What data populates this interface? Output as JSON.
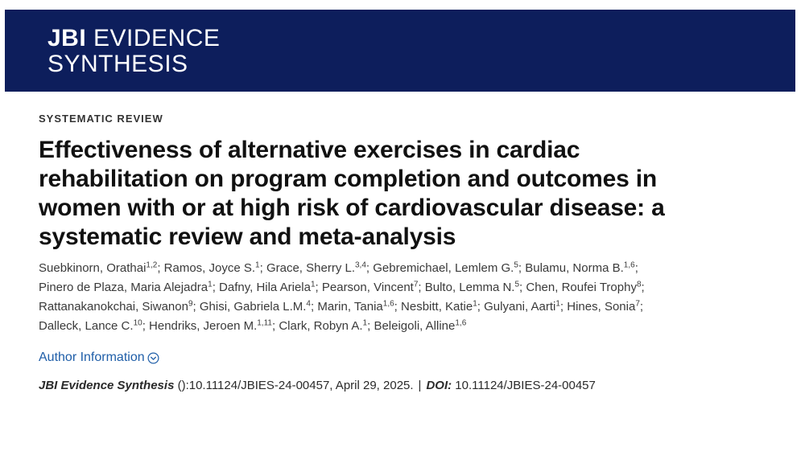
{
  "header": {
    "logo_bold": "JBI",
    "logo_line1_rest": " EVIDENCE",
    "logo_line2": "SYNTHESIS",
    "background": "#0d1e5c"
  },
  "article": {
    "category": "SYSTEMATIC REVIEW",
    "title_lines": [
      "Effectiveness of alternative exercises in cardiac",
      "rehabilitation on program completion and outcomes in",
      "women with or at high risk of cardiovascular disease: a",
      "systematic review and meta-analysis"
    ],
    "author_lines": [
      [
        {
          "name": "Suebkinorn, Orathai",
          "sup": "1,2"
        },
        {
          "name": "Ramos, Joyce S.",
          "sup": "1"
        },
        {
          "name": "Grace, Sherry L.",
          "sup": "3,4"
        },
        {
          "name": "Gebremichael, Lemlem G.",
          "sup": "5"
        },
        {
          "name": "Bulamu, Norma B.",
          "sup": "1,6"
        }
      ],
      [
        {
          "name": "Pinero de Plaza, Maria Alejadra",
          "sup": "1"
        },
        {
          "name": "Dafny, Hila Ariela",
          "sup": "1"
        },
        {
          "name": "Pearson, Vincent",
          "sup": "7"
        },
        {
          "name": "Bulto, Lemma N.",
          "sup": "5"
        },
        {
          "name": "Chen, Roufei Trophy",
          "sup": "8"
        }
      ],
      [
        {
          "name": "Rattanakanokchai, Siwanon",
          "sup": "9"
        },
        {
          "name": "Ghisi, Gabriela L.M.",
          "sup": "4"
        },
        {
          "name": "Marin, Tania",
          "sup": "1,6"
        },
        {
          "name": "Nesbitt, Katie",
          "sup": "1"
        },
        {
          "name": "Gulyani, Aarti",
          "sup": "1"
        },
        {
          "name": "Hines, Sonia",
          "sup": "7"
        }
      ],
      [
        {
          "name": "Dalleck, Lance C.",
          "sup": "10"
        },
        {
          "name": "Hendriks, Jeroen M.",
          "sup": "1,11"
        },
        {
          "name": "Clark, Robyn A.",
          "sup": "1"
        },
        {
          "name": "Beleigoli, Alline",
          "sup": "1,6"
        }
      ]
    ],
    "author_info_label": "Author Information",
    "author_info_icon": "chevron-down-circle-icon",
    "citation": {
      "journal": "JBI Evidence Synthesis",
      "details": " ():10.11124/JBIES-24-00457, April 29, 2025.",
      "separator": "|",
      "doi_label": "DOI:",
      "doi_value": " 10.11124/JBIES-24-00457"
    },
    "link_color": "#1f5ea8"
  }
}
